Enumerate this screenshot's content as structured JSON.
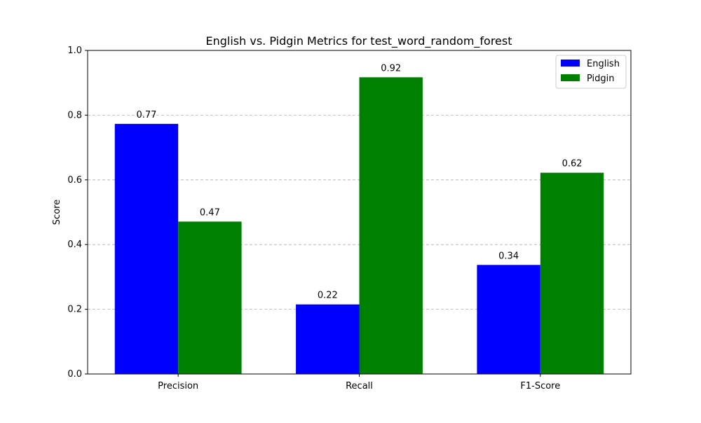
{
  "chart_data": {
    "type": "bar",
    "title": "English vs. Pidgin Metrics for test_word_random_forest",
    "xlabel": "",
    "ylabel": "Score",
    "ylim": [
      0,
      1.0
    ],
    "yticks": [
      0.0,
      0.2,
      0.4,
      0.6,
      0.8,
      1.0
    ],
    "ytick_labels": [
      "0.0",
      "0.2",
      "0.4",
      "0.6",
      "0.8",
      "1.0"
    ],
    "grid": "y-dashed",
    "legend_position": "top-right",
    "categories": [
      "Precision",
      "Recall",
      "F1-Score"
    ],
    "series": [
      {
        "name": "English",
        "color": "#0000ff",
        "values": [
          0.773,
          0.215,
          0.337
        ],
        "labels": [
          "0.77",
          "0.22",
          "0.34"
        ]
      },
      {
        "name": "Pidgin",
        "color": "#008000",
        "values": [
          0.471,
          0.917,
          0.622
        ],
        "labels": [
          "0.47",
          "0.92",
          "0.62"
        ]
      }
    ]
  }
}
